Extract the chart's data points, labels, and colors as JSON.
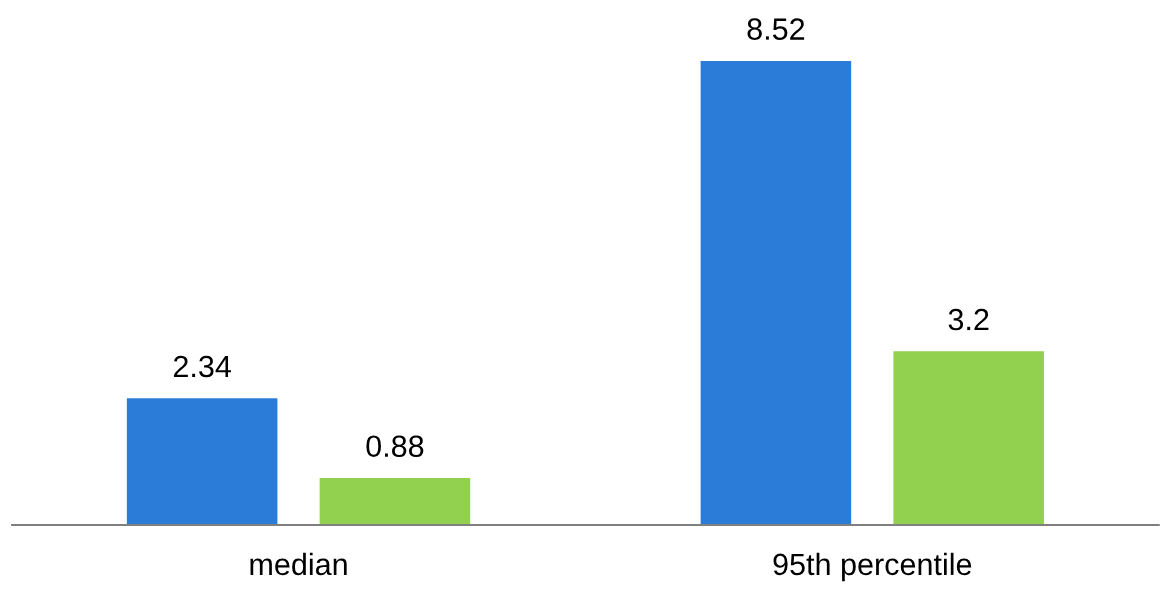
{
  "chart_data": {
    "type": "bar",
    "categories": [
      "median",
      "95th percentile"
    ],
    "series": [
      {
        "color": "#2b7cd8",
        "values": [
          2.34,
          8.52
        ]
      },
      {
        "color": "#92d050",
        "values": [
          0.88,
          3.2
        ]
      }
    ],
    "data_labels": true,
    "grid": false,
    "legend": false,
    "tick_labels": "x"
  }
}
